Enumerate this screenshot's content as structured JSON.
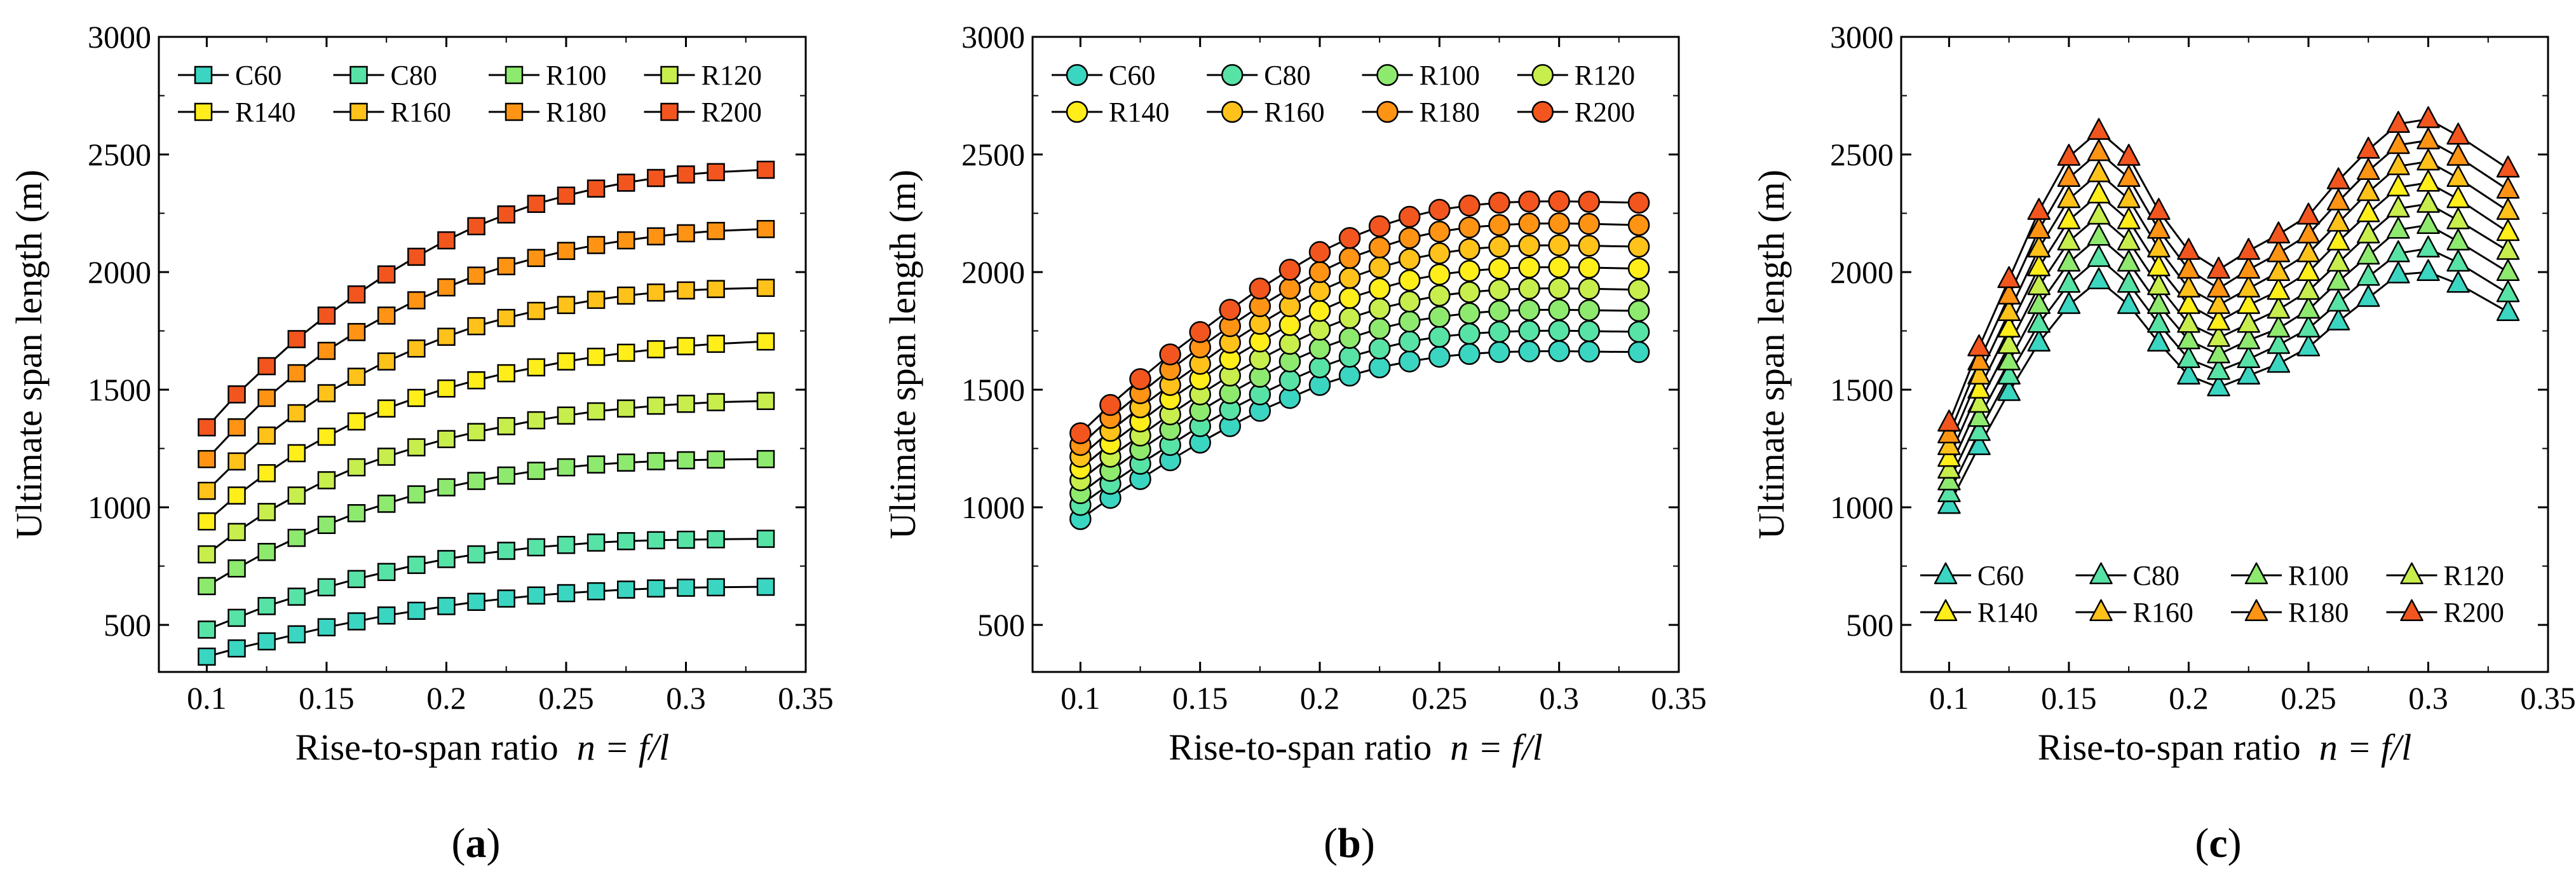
{
  "chart_data": [
    {
      "type": "line",
      "panel_label": {
        "open": "(",
        "letter": "a",
        "close": ")"
      },
      "marker": "square",
      "xlabel_prefix": "Rise-to-span ratio",
      "xlabel_formula": "n = f/l",
      "ylabel": "Ultimate span length (m)",
      "xlim": [
        0.08,
        0.35
      ],
      "ylim": [
        300,
        3000
      ],
      "xticks": [
        0.1,
        0.15,
        0.2,
        0.25,
        0.3,
        0.35
      ],
      "xtick_labels": [
        "0.1",
        "0.15",
        "0.2",
        "0.25",
        "0.3",
        "0.35"
      ],
      "yticks": [
        500,
        1000,
        1500,
        2000,
        2500,
        3000
      ],
      "ytick_labels": [
        "500",
        "1000",
        "1500",
        "2000",
        "2500",
        "3000"
      ],
      "legend_position": "top",
      "x": [
        0.1,
        0.1125,
        0.125,
        0.1375,
        0.15,
        0.1625,
        0.175,
        0.1875,
        0.2,
        0.2125,
        0.225,
        0.2375,
        0.25,
        0.2625,
        0.275,
        0.2875,
        0.3,
        0.3125,
        0.3333
      ],
      "series": [
        {
          "name": "C60",
          "color": "#3ad6c2",
          "values": [
            365,
            400,
            430,
            460,
            490,
            515,
            540,
            560,
            580,
            598,
            612,
            625,
            635,
            643,
            650,
            655,
            658,
            660,
            662
          ]
        },
        {
          "name": "C80",
          "color": "#58e3a6",
          "values": [
            480,
            530,
            580,
            620,
            660,
            695,
            725,
            755,
            780,
            800,
            815,
            830,
            840,
            850,
            856,
            860,
            862,
            864,
            866
          ]
        },
        {
          "name": "R100",
          "color": "#8eea6e",
          "values": [
            665,
            740,
            810,
            870,
            925,
            975,
            1015,
            1055,
            1085,
            1112,
            1135,
            1155,
            1170,
            1182,
            1190,
            1196,
            1200,
            1203,
            1205
          ]
        },
        {
          "name": "R120",
          "color": "#c7ee4c",
          "values": [
            800,
            895,
            980,
            1050,
            1115,
            1170,
            1215,
            1255,
            1290,
            1320,
            1345,
            1370,
            1390,
            1408,
            1420,
            1432,
            1440,
            1447,
            1452
          ]
        },
        {
          "name": "R140",
          "color": "#ffee1a",
          "values": [
            940,
            1050,
            1145,
            1230,
            1300,
            1365,
            1420,
            1465,
            1505,
            1540,
            1570,
            1595,
            1620,
            1640,
            1657,
            1672,
            1685,
            1695,
            1705
          ]
        },
        {
          "name": "R160",
          "color": "#ffc21a",
          "values": [
            1070,
            1195,
            1305,
            1400,
            1485,
            1555,
            1620,
            1675,
            1725,
            1770,
            1805,
            1835,
            1860,
            1882,
            1900,
            1913,
            1922,
            1928,
            1933
          ]
        },
        {
          "name": "R180",
          "color": "#ff9414",
          "values": [
            1205,
            1340,
            1465,
            1570,
            1665,
            1745,
            1815,
            1880,
            1935,
            1985,
            2025,
            2060,
            2090,
            2115,
            2135,
            2152,
            2165,
            2175,
            2183
          ]
        },
        {
          "name": "R200",
          "color": "#f2561e",
          "values": [
            1340,
            1480,
            1600,
            1715,
            1815,
            1905,
            1990,
            2065,
            2135,
            2195,
            2245,
            2290,
            2325,
            2355,
            2380,
            2400,
            2415,
            2425,
            2435
          ]
        }
      ]
    },
    {
      "type": "line",
      "panel_label": {
        "open": "(",
        "letter": "b",
        "close": ")"
      },
      "marker": "circle",
      "xlabel_prefix": "Rise-to-span ratio",
      "xlabel_formula": "n = f/l",
      "ylabel": "Ultimate span length (m)",
      "xlim": [
        0.08,
        0.35
      ],
      "ylim": [
        300,
        3000
      ],
      "xticks": [
        0.1,
        0.15,
        0.2,
        0.25,
        0.3,
        0.35
      ],
      "xtick_labels": [
        "0.1",
        "0.15",
        "0.2",
        "0.25",
        "0.3",
        "0.35"
      ],
      "yticks": [
        500,
        1000,
        1500,
        2000,
        2500,
        3000
      ],
      "ytick_labels": [
        "500",
        "1000",
        "1500",
        "2000",
        "2500",
        "3000"
      ],
      "legend_position": "top",
      "x": [
        0.1,
        0.1125,
        0.125,
        0.1375,
        0.15,
        0.1625,
        0.175,
        0.1875,
        0.2,
        0.2125,
        0.225,
        0.2375,
        0.25,
        0.2625,
        0.275,
        0.2875,
        0.3,
        0.3125,
        0.3333
      ],
      "series": [
        {
          "name": "C60",
          "color": "#3ad6c2",
          "values": [
            950,
            1040,
            1120,
            1200,
            1275,
            1345,
            1410,
            1465,
            1520,
            1560,
            1595,
            1620,
            1640,
            1652,
            1660,
            1663,
            1664,
            1662,
            1660
          ]
        },
        {
          "name": "C80",
          "color": "#58e3a6",
          "values": [
            1010,
            1100,
            1185,
            1265,
            1345,
            1415,
            1480,
            1540,
            1595,
            1640,
            1675,
            1705,
            1725,
            1738,
            1746,
            1750,
            1751,
            1749,
            1746
          ]
        },
        {
          "name": "R100",
          "color": "#8eea6e",
          "values": [
            1060,
            1155,
            1245,
            1330,
            1410,
            1485,
            1555,
            1620,
            1675,
            1720,
            1760,
            1790,
            1810,
            1825,
            1835,
            1839,
            1840,
            1838,
            1835
          ]
        },
        {
          "name": "R120",
          "color": "#c7ee4c",
          "values": [
            1115,
            1215,
            1305,
            1395,
            1480,
            1560,
            1630,
            1695,
            1755,
            1805,
            1845,
            1875,
            1900,
            1915,
            1925,
            1930,
            1931,
            1929,
            1925
          ]
        },
        {
          "name": "R140",
          "color": "#ffee1a",
          "values": [
            1165,
            1270,
            1365,
            1460,
            1545,
            1630,
            1705,
            1775,
            1835,
            1890,
            1930,
            1965,
            1990,
            2005,
            2015,
            2020,
            2021,
            2019,
            2015
          ]
        },
        {
          "name": "R160",
          "color": "#ffc21a",
          "values": [
            1215,
            1325,
            1425,
            1520,
            1610,
            1700,
            1780,
            1855,
            1920,
            1975,
            2020,
            2055,
            2080,
            2098,
            2108,
            2113,
            2114,
            2112,
            2108
          ]
        },
        {
          "name": "R180",
          "color": "#ff9414",
          "values": [
            1265,
            1380,
            1485,
            1585,
            1680,
            1770,
            1855,
            1930,
            2000,
            2060,
            2105,
            2145,
            2172,
            2190,
            2200,
            2206,
            2207,
            2205,
            2200
          ]
        },
        {
          "name": "R200",
          "color": "#f2561e",
          "values": [
            1315,
            1435,
            1545,
            1650,
            1745,
            1840,
            1930,
            2010,
            2085,
            2145,
            2195,
            2235,
            2265,
            2283,
            2295,
            2300,
            2301,
            2299,
            2295
          ]
        }
      ]
    },
    {
      "type": "line",
      "panel_label": {
        "open": "(",
        "letter": "c",
        "close": ")"
      },
      "marker": "triangle",
      "xlabel_prefix": "Rise-to-span ratio",
      "xlabel_formula": "n = f/l",
      "ylabel": "Ultimate span length (m)",
      "xlim": [
        0.08,
        0.35
      ],
      "ylim": [
        300,
        3000
      ],
      "xticks": [
        0.1,
        0.15,
        0.2,
        0.25,
        0.3,
        0.35
      ],
      "xtick_labels": [
        "0.1",
        "0.15",
        "0.2",
        "0.25",
        "0.3",
        "0.35"
      ],
      "yticks": [
        500,
        1000,
        1500,
        2000,
        2500,
        3000
      ],
      "ytick_labels": [
        "500",
        "1000",
        "1500",
        "2000",
        "2500",
        "3000"
      ],
      "legend_position": "bottom",
      "x": [
        0.1,
        0.1125,
        0.125,
        0.1375,
        0.15,
        0.1625,
        0.175,
        0.1875,
        0.2,
        0.2125,
        0.225,
        0.2375,
        0.25,
        0.2625,
        0.275,
        0.2875,
        0.3,
        0.3125,
        0.3333
      ],
      "series": [
        {
          "name": "C60",
          "color": "#3ad6c2",
          "values": [
            1010,
            1260,
            1490,
            1700,
            1860,
            1965,
            1860,
            1700,
            1560,
            1510,
            1560,
            1610,
            1680,
            1790,
            1890,
            1990,
            2000,
            1950,
            1830
          ]
        },
        {
          "name": "C80",
          "color": "#58e3a6",
          "values": [
            1060,
            1320,
            1560,
            1780,
            1950,
            2060,
            1950,
            1780,
            1630,
            1580,
            1630,
            1690,
            1760,
            1870,
            1980,
            2080,
            2100,
            2040,
            1910
          ]
        },
        {
          "name": "R100",
          "color": "#8eea6e",
          "values": [
            1110,
            1380,
            1620,
            1860,
            2040,
            2150,
            2040,
            1860,
            1710,
            1650,
            1710,
            1760,
            1840,
            1960,
            2070,
            2180,
            2200,
            2130,
            2000
          ]
        },
        {
          "name": "R120",
          "color": "#c7ee4c",
          "values": [
            1160,
            1440,
            1690,
            1940,
            2130,
            2240,
            2130,
            1940,
            1780,
            1720,
            1780,
            1840,
            1920,
            2040,
            2160,
            2270,
            2290,
            2220,
            2090
          ]
        },
        {
          "name": "R140",
          "color": "#ffee1a",
          "values": [
            1210,
            1500,
            1760,
            2020,
            2220,
            2330,
            2220,
            2020,
            1860,
            1790,
            1860,
            1920,
            2000,
            2130,
            2250,
            2360,
            2380,
            2310,
            2170
          ]
        },
        {
          "name": "R160",
          "color": "#ffc21a",
          "values": [
            1260,
            1560,
            1830,
            2100,
            2310,
            2420,
            2310,
            2100,
            1930,
            1860,
            1930,
            2000,
            2080,
            2210,
            2340,
            2450,
            2470,
            2400,
            2260
          ]
        },
        {
          "name": "R180",
          "color": "#ff9414",
          "values": [
            1310,
            1620,
            1900,
            2180,
            2400,
            2510,
            2400,
            2180,
            2010,
            1930,
            2010,
            2080,
            2160,
            2300,
            2430,
            2540,
            2560,
            2490,
            2350
          ]
        },
        {
          "name": "R200",
          "color": "#f2561e",
          "values": [
            1360,
            1680,
            1970,
            2260,
            2490,
            2600,
            2490,
            2260,
            2090,
            2010,
            2090,
            2160,
            2240,
            2390,
            2520,
            2630,
            2650,
            2580,
            2440
          ]
        }
      ]
    }
  ]
}
